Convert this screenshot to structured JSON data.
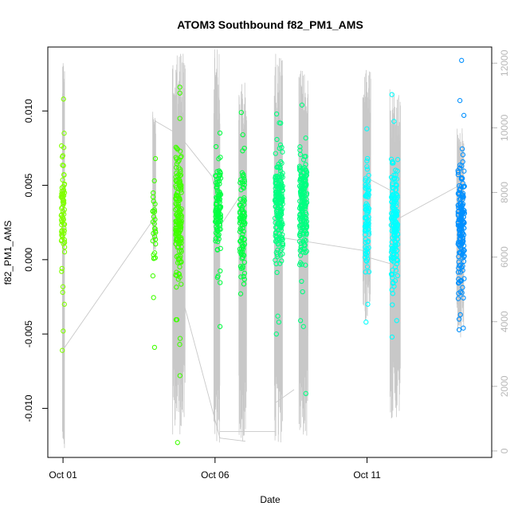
{
  "chart_data": {
    "type": "scatter",
    "title": "ATOM3 Southbound f82_PM1_AMS",
    "xlabel": "Date",
    "ylabel": "f82_PM1_AMS",
    "x_ticks": [
      {
        "value": 1,
        "label": "Oct 01"
      },
      {
        "value": 6,
        "label": "Oct 06"
      },
      {
        "value": 11,
        "label": "Oct 11"
      }
    ],
    "xlim": [
      0.5,
      15.1
    ],
    "ylim": [
      -0.0133,
      0.0143
    ],
    "y_ticks": [
      {
        "value": -0.01,
        "label": "-0.010"
      },
      {
        "value": -0.005,
        "label": "-0.005"
      },
      {
        "value": 0.0,
        "label": "0.000"
      },
      {
        "value": 0.005,
        "label": "0.005"
      },
      {
        "value": 0.01,
        "label": "0.010"
      }
    ],
    "y2lim": [
      -200,
      12500
    ],
    "y2_ticks": [
      {
        "value": 0,
        "label": "0"
      },
      {
        "value": 2000,
        "label": "2000"
      },
      {
        "value": 4000,
        "label": "4000"
      },
      {
        "value": 6000,
        "label": "6000"
      },
      {
        "value": 8000,
        "label": "8000"
      },
      {
        "value": 10000,
        "label": "10000"
      },
      {
        "value": 12000,
        "label": "12000"
      }
    ],
    "point_colors": [
      "#80ff00",
      "#40ff00",
      "#00ff40",
      "#00ff80",
      "#00ffff",
      "#00c0ff",
      "#0090ff"
    ],
    "line_color": "#c8c8c8",
    "flights": [
      {
        "day": 1.0,
        "width": 0.12,
        "mean": 0.0033,
        "sd": 0.0016,
        "n": 70,
        "color": "#80ff00",
        "extremes": [
          0.0108,
          0.0085,
          -0.0061,
          -0.0048,
          -0.003,
          -0.0022
        ]
      },
      {
        "day": 4.0,
        "width": 0.1,
        "mean": 0.0018,
        "sd": 0.0018,
        "n": 30,
        "color": "#40ff00",
        "extremes": [
          0.0053,
          -0.0059
        ]
      },
      {
        "day": 4.8,
        "width": 0.2,
        "mean": 0.003,
        "sd": 0.0022,
        "n": 160,
        "color": "#40ff00",
        "extremes": [
          0.0116,
          0.0112,
          0.0095,
          -0.0123,
          -0.0078,
          -0.0057,
          -0.0053
        ]
      },
      {
        "day": 6.1,
        "width": 0.18,
        "mean": 0.0033,
        "sd": 0.0017,
        "n": 110,
        "color": "#00ff40",
        "extremes": [
          0.0076,
          -0.0045,
          -0.0011
        ]
      },
      {
        "day": 6.9,
        "width": 0.18,
        "mean": 0.0025,
        "sd": 0.002,
        "n": 90,
        "color": "#00ff40",
        "extremes": [
          0.0099,
          0.0084,
          -0.0023
        ]
      },
      {
        "day": 8.1,
        "width": 0.26,
        "mean": 0.0035,
        "sd": 0.0018,
        "n": 190,
        "color": "#00ff80",
        "extremes": [
          0.0098,
          0.0092,
          -0.005,
          -0.0042,
          -0.0038
        ]
      },
      {
        "day": 8.9,
        "width": 0.24,
        "mean": 0.0035,
        "sd": 0.002,
        "n": 180,
        "color": "#00ff80",
        "extremes": [
          0.0104,
          -0.009,
          -0.0045,
          -0.0041
        ]
      },
      {
        "day": 11.0,
        "width": 0.14,
        "mean": 0.0028,
        "sd": 0.0018,
        "n": 90,
        "color": "#00ffff",
        "extremes": [
          0.0088,
          -0.0042,
          -0.003
        ]
      },
      {
        "day": 11.9,
        "width": 0.22,
        "mean": 0.0022,
        "sd": 0.002,
        "n": 170,
        "color": "#00ffff",
        "extremes": [
          0.0111,
          0.0093,
          -0.0052,
          -0.0041
        ]
      },
      {
        "day": 14.1,
        "width": 0.22,
        "mean": 0.0022,
        "sd": 0.0022,
        "n": 170,
        "color": "#0090ff",
        "extremes": [
          0.0134,
          0.0107,
          0.0097,
          -0.0046,
          -0.004,
          -0.0037
        ]
      }
    ],
    "altitude_profiles": [
      {
        "day": 1.0,
        "x0": 0.98,
        "x1": 1.05,
        "low": 50,
        "high": 12200,
        "jitter": 1800
      },
      {
        "day": 4.0,
        "x0": 3.95,
        "x1": 4.05,
        "low": 6200,
        "high": 10500,
        "jitter": 800
      },
      {
        "day": 4.8,
        "x0": 4.6,
        "x1": 5.02,
        "low": 500,
        "high": 12500,
        "jitter": 2200
      },
      {
        "day": 6.1,
        "x0": 5.96,
        "x1": 6.16,
        "low": 200,
        "high": 12500,
        "jitter": 2500
      },
      {
        "day": 6.9,
        "x0": 6.78,
        "x1": 7.04,
        "low": 200,
        "high": 11500,
        "jitter": 2400
      },
      {
        "day": 8.1,
        "x0": 7.95,
        "x1": 8.22,
        "low": 200,
        "high": 12300,
        "jitter": 2600
      },
      {
        "day": 8.9,
        "x0": 8.76,
        "x1": 9.06,
        "low": 400,
        "high": 11800,
        "jitter": 2400
      },
      {
        "day": 11.0,
        "x0": 10.86,
        "x1": 11.12,
        "low": 3800,
        "high": 11800,
        "jitter": 1800
      },
      {
        "day": 11.9,
        "x0": 11.75,
        "x1": 12.1,
        "low": 1000,
        "high": 11200,
        "jitter": 1800
      },
      {
        "day": 14.1,
        "x0": 13.95,
        "x1": 14.18,
        "low": 3500,
        "high": 10000,
        "jitter": 1400
      }
    ],
    "altitude_links": [
      [
        1.05,
        3200,
        4.0,
        7200
      ],
      [
        4.05,
        10200,
        4.78,
        9800
      ],
      [
        4.8,
        9800,
        5.9,
        8500
      ],
      [
        5.9,
        8500,
        6.2,
        7000
      ],
      [
        6.2,
        7000,
        6.9,
        8000
      ],
      [
        4.85,
        5000,
        6.16,
        400
      ],
      [
        6.16,
        400,
        7.0,
        300
      ],
      [
        6.16,
        600,
        8.0,
        600
      ],
      [
        8.0,
        1500,
        8.6,
        1900
      ],
      [
        8.2,
        6600,
        10.9,
        6200
      ],
      [
        10.9,
        6200,
        11.05,
        8400
      ],
      [
        11.1,
        8400,
        11.9,
        8000
      ],
      [
        11.0,
        6000,
        11.75,
        5800
      ],
      [
        12.05,
        7200,
        14.0,
        8200
      ]
    ]
  }
}
